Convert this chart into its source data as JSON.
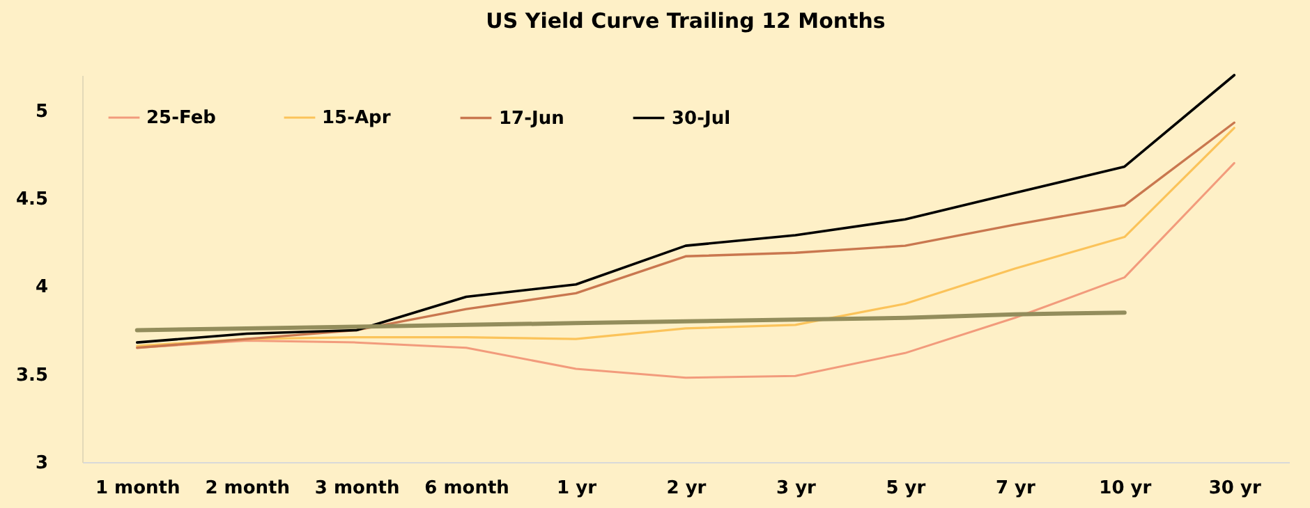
{
  "chart_data": {
    "type": "line",
    "title": "US Yield Curve Trailing 12 Months",
    "categories": [
      "1 month",
      "2 month",
      "3 month",
      "6 month",
      "1 yr",
      "2 yr",
      "3 yr",
      "5 yr",
      "7 yr",
      "10 yr",
      "30 yr"
    ],
    "series": [
      {
        "name": "25-Feb",
        "color": "#f29b7c",
        "values": [
          3.65,
          3.69,
          3.68,
          3.65,
          3.53,
          3.48,
          3.49,
          3.62,
          3.82,
          4.05,
          4.7
        ]
      },
      {
        "name": "15-Apr",
        "color": "#fbc35a",
        "values": [
          3.66,
          3.7,
          3.71,
          3.71,
          3.7,
          3.76,
          3.78,
          3.9,
          4.1,
          4.28,
          4.9
        ]
      },
      {
        "name": "17-Jun",
        "color": "#c9774f",
        "values": [
          3.65,
          3.7,
          3.75,
          3.87,
          3.96,
          4.17,
          4.19,
          4.23,
          4.35,
          4.46,
          4.93
        ]
      },
      {
        "name": "30-Jul",
        "color": "#000000",
        "values": [
          3.68,
          3.73,
          3.75,
          3.94,
          4.01,
          4.23,
          4.29,
          4.38,
          4.53,
          4.68,
          5.2
        ]
      },
      {
        "color": "#938d5c",
        "values": [
          3.75,
          3.76,
          3.77,
          3.78,
          3.79,
          3.8,
          3.81,
          3.82,
          3.84,
          3.85,
          null
        ]
      }
    ],
    "ylim": [
      3,
      5.2
    ],
    "yticks": [
      3,
      3.5,
      4,
      4.5,
      5
    ],
    "grid": false,
    "legend": "top left",
    "marker": "none"
  }
}
